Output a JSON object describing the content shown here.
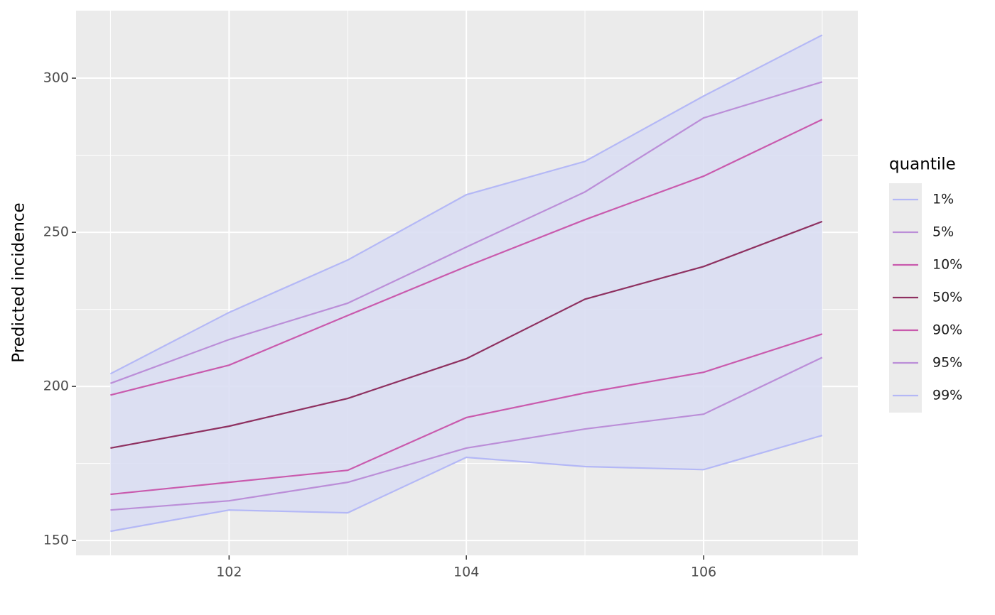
{
  "chart_data": {
    "type": "line",
    "y_label": "Predicted incidence",
    "legend_title": "quantile",
    "x": [
      101,
      102,
      103,
      104,
      105,
      106,
      107
    ],
    "xlim": [
      100.71,
      107.3
    ],
    "xticks": [
      102,
      104,
      106
    ],
    "ylim": [
      145.2,
      321.9
    ],
    "yticks": [
      150,
      200,
      250,
      300
    ],
    "grid": true,
    "ribbon_color": "#dadef3",
    "series": [
      {
        "name": "1%",
        "color": "#b4b8f6",
        "values": [
          153,
          159.9,
          159,
          177,
          174,
          173,
          184.1
        ]
      },
      {
        "name": "5%",
        "color": "#bb8ed8",
        "values": [
          159.9,
          162.9,
          168.9,
          180,
          186.2,
          191,
          209.4
        ]
      },
      {
        "name": "10%",
        "color": "#c95aad",
        "values": [
          165,
          168.9,
          172.8,
          189.9,
          197.9,
          204.6,
          217
        ]
      },
      {
        "name": "50%",
        "color": "#8e3060",
        "values": [
          180,
          187.1,
          196.1,
          209,
          228.3,
          238.9,
          253.5
        ]
      },
      {
        "name": "90%",
        "color": "#c95aad",
        "values": [
          197.2,
          206.9,
          223,
          238.9,
          254.1,
          268.2,
          286.6
        ]
      },
      {
        "name": "95%",
        "color": "#bb8ed8",
        "values": [
          201,
          215.2,
          227,
          245.2,
          263.1,
          287.1,
          298.8
        ]
      },
      {
        "name": "99%",
        "color": "#b4b8f6",
        "values": [
          204.1,
          224,
          241,
          262.2,
          273,
          294.2,
          314
        ]
      }
    ]
  }
}
